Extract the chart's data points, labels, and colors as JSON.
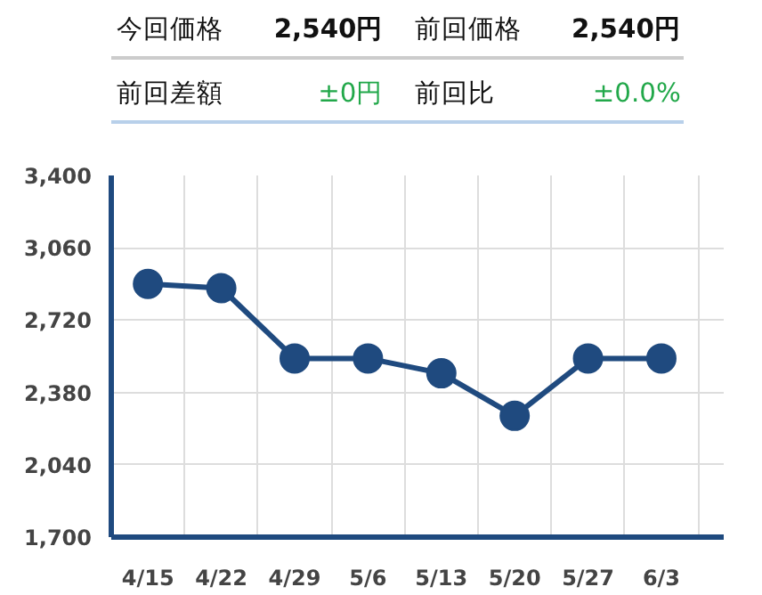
{
  "chart_data": {
    "type": "line",
    "categories": [
      "4/15",
      "4/22",
      "4/29",
      "5/6",
      "5/13",
      "5/20",
      "5/27",
      "6/3"
    ],
    "series": [
      {
        "color": "#1f4a7f",
        "values": [
          2890,
          2870,
          2540,
          2540,
          2470,
          2270,
          2540,
          2540
        ]
      }
    ],
    "ylim": [
      1700,
      3400
    ],
    "yticks": [
      {
        "value": 1700,
        "label": "1,700"
      },
      {
        "value": 2040,
        "label": "2,040"
      },
      {
        "value": 2380,
        "label": "2,380"
      },
      {
        "value": 2720,
        "label": "2,720"
      },
      {
        "value": 3060,
        "label": "3,060"
      },
      {
        "value": 3400,
        "label": "3,400"
      }
    ],
    "grid": true,
    "marker": "circle",
    "line_style": "solid",
    "annotations": [
      "今回価格",
      "2,540円",
      "前回価格",
      "2,540円",
      "前回差額",
      "±0円",
      "前回比",
      "±0.0%"
    ]
  }
}
